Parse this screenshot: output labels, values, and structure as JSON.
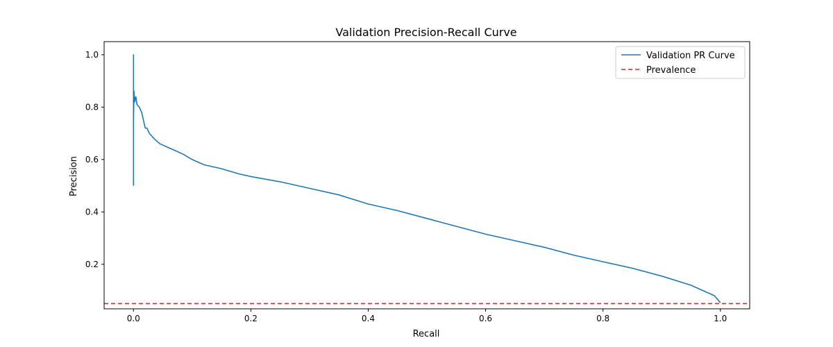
{
  "chart_data": {
    "type": "line",
    "title": "Validation Precision-Recall Curve",
    "xlabel": "Recall",
    "ylabel": "Precision",
    "xlim": [
      -0.05,
      1.05
    ],
    "ylim": [
      0.03,
      1.05
    ],
    "x_ticks": [
      0.0,
      0.2,
      0.4,
      0.6,
      0.8,
      1.0
    ],
    "x_tick_labels": [
      "0.0",
      "0.2",
      "0.4",
      "0.6",
      "0.8",
      "1.0"
    ],
    "y_ticks": [
      0.2,
      0.4,
      0.6,
      0.8,
      1.0
    ],
    "y_tick_labels": [
      "0.2",
      "0.4",
      "0.6",
      "0.8",
      "1.0"
    ],
    "grid": false,
    "legend_position": "top-right",
    "series": [
      {
        "name": "Validation PR Curve",
        "color": "#1f77b4",
        "style": "solid",
        "x": [
          0.0,
          0.0,
          0.0,
          0.0,
          0.0,
          0.001,
          0.002,
          0.004,
          0.006,
          0.01,
          0.014,
          0.02,
          0.023,
          0.027,
          0.035,
          0.045,
          0.055,
          0.07,
          0.085,
          0.1,
          0.12,
          0.15,
          0.18,
          0.2,
          0.25,
          0.3,
          0.35,
          0.4,
          0.45,
          0.5,
          0.55,
          0.6,
          0.65,
          0.7,
          0.75,
          0.8,
          0.85,
          0.9,
          0.95,
          0.97,
          0.99,
          1.0
        ],
        "y": [
          0.5,
          1.0,
          0.62,
          0.93,
          0.75,
          0.86,
          0.82,
          0.84,
          0.81,
          0.8,
          0.78,
          0.72,
          0.72,
          0.7,
          0.68,
          0.66,
          0.65,
          0.635,
          0.62,
          0.6,
          0.58,
          0.565,
          0.545,
          0.535,
          0.515,
          0.49,
          0.465,
          0.43,
          0.405,
          0.375,
          0.345,
          0.315,
          0.29,
          0.265,
          0.235,
          0.21,
          0.185,
          0.155,
          0.12,
          0.1,
          0.08,
          0.053
        ]
      },
      {
        "name": "Prevalence",
        "color": "#d62728",
        "style": "dashed",
        "y_const": 0.05
      }
    ]
  }
}
